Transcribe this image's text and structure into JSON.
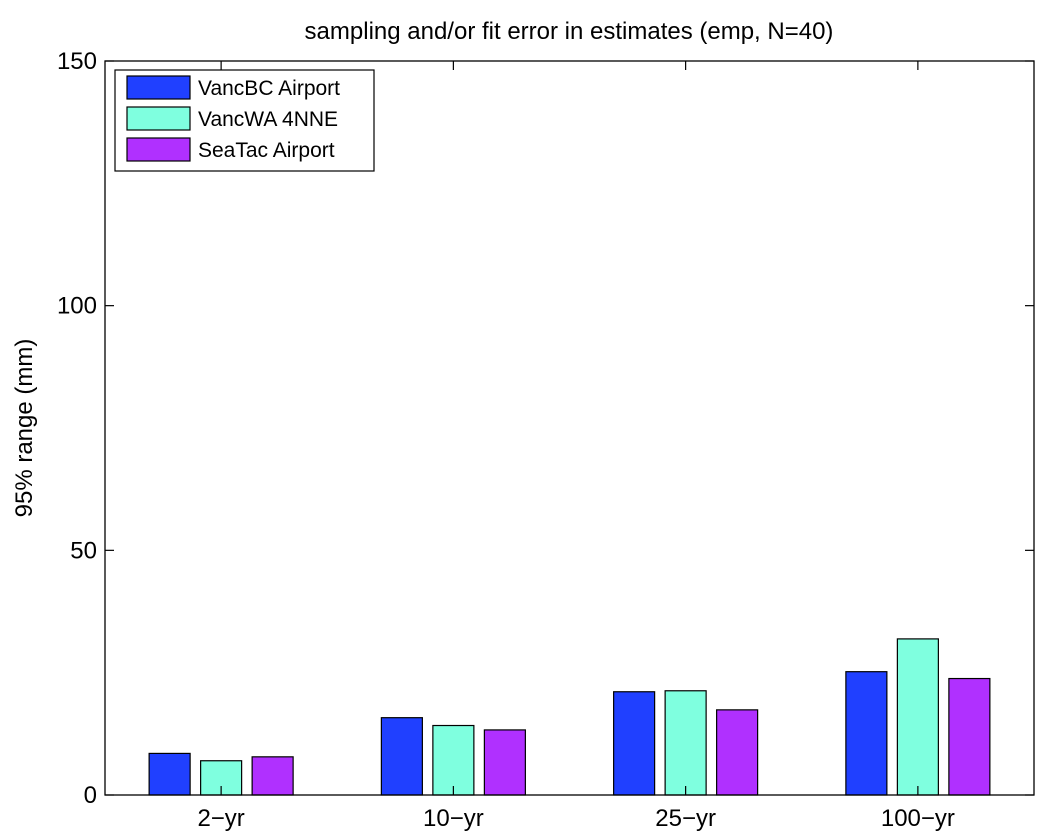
{
  "chart_data": {
    "type": "bar",
    "title": "sampling and/or fit error in estimates (emp, N=40)",
    "xlabel": "",
    "ylabel": "95% range (mm)",
    "categories": [
      "2−yr",
      "10−yr",
      "25−yr",
      "100−yr"
    ],
    "series": [
      {
        "name": "VancBC Airport",
        "color": "#2040ff",
        "values": [
          8.5,
          15.8,
          21.1,
          25.2
        ]
      },
      {
        "name": "VancWA 4NNE",
        "color": "#7fffdf",
        "values": [
          7.0,
          14.2,
          21.3,
          31.9
        ]
      },
      {
        "name": "SeaTac Airport",
        "color": "#b030ff",
        "values": [
          7.8,
          13.3,
          17.4,
          23.8
        ]
      }
    ],
    "ylim": [
      0,
      150
    ],
    "yticks": [
      0,
      50,
      100,
      150
    ],
    "ytick_labels": [
      "0",
      "50",
      "100",
      "150"
    ],
    "grid": false,
    "legend_position": "top-left"
  }
}
